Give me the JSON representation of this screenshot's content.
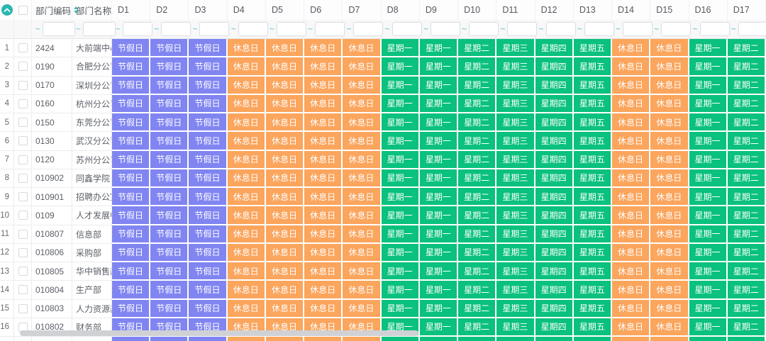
{
  "colors": {
    "accent_teal": "#2ab5b1",
    "sort_icon_teal": "#35c2ca",
    "tilde_teal": "#4fc4cd",
    "holiday_purple": "#8085f1",
    "rest_orange": "#fba55d",
    "weekday_green": "#0ac17d",
    "scrollbar_thumb": "#cfd1d4"
  },
  "table": {
    "code_column": {
      "label": "部门编码",
      "sortable": true
    },
    "name_column": {
      "label": "部门名称"
    },
    "filter_prefix": "~",
    "day_columns": [
      "D1",
      "D2",
      "D3",
      "D4",
      "D5",
      "D6",
      "D7",
      "D8",
      "D9",
      "D10",
      "D11",
      "D12",
      "D13",
      "D14",
      "D15",
      "D16",
      "D17"
    ],
    "day_pattern": [
      "holiday",
      "holiday",
      "holiday",
      "rest",
      "rest",
      "rest",
      "rest",
      "mon",
      "mon",
      "tue",
      "wed",
      "thu",
      "fri",
      "rest",
      "rest",
      "mon",
      "tue"
    ],
    "day_types": {
      "holiday": {
        "label": "节假日",
        "color": "#8085f1"
      },
      "rest": {
        "label": "休息日",
        "color": "#fba55d"
      },
      "mon": {
        "label": "星期一",
        "color": "#0ac17d"
      },
      "tue": {
        "label": "星期二",
        "color": "#0ac17d"
      },
      "wed": {
        "label": "星期三",
        "color": "#0ac17d"
      },
      "thu": {
        "label": "星期四",
        "color": "#0ac17d"
      },
      "fri": {
        "label": "星期五",
        "color": "#0ac17d"
      }
    },
    "rows": [
      {
        "num": "1",
        "code": "2424",
        "name": "大前端中心"
      },
      {
        "num": "2",
        "code": "0190",
        "name": "合肥分公司"
      },
      {
        "num": "3",
        "code": "0170",
        "name": "深圳分公司"
      },
      {
        "num": "4",
        "code": "0160",
        "name": "杭州分公司"
      },
      {
        "num": "5",
        "code": "0150",
        "name": "东莞分公司"
      },
      {
        "num": "6",
        "code": "0130",
        "name": "武汉分公司"
      },
      {
        "num": "7",
        "code": "0120",
        "name": "苏州分公司"
      },
      {
        "num": "8",
        "code": "010902",
        "name": "同鑫学院"
      },
      {
        "num": "9",
        "code": "010901",
        "name": "招聘办公室"
      },
      {
        "num": "10",
        "code": "0109",
        "name": "人才发展中心"
      },
      {
        "num": "11",
        "code": "010807",
        "name": "信息部"
      },
      {
        "num": "12",
        "code": "010806",
        "name": "采购部"
      },
      {
        "num": "13",
        "code": "010805",
        "name": "华中销售部"
      },
      {
        "num": "14",
        "code": "010804",
        "name": "生产部"
      },
      {
        "num": "15",
        "code": "010803",
        "name": "人力资源部"
      },
      {
        "num": "16",
        "code": "010802",
        "name": "财务部"
      }
    ],
    "show_partial_next_row": true
  }
}
